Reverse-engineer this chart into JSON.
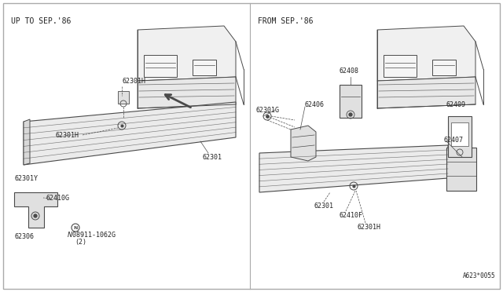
{
  "bg_color": "#ffffff",
  "line_color": "#4a4a4a",
  "text_color": "#222222",
  "border_color": "#aaaaaa",
  "left_label": "UP TO SEP.'86",
  "right_label": "FROM SEP.'86",
  "footer": "A623*0055",
  "part_fs": 6.0,
  "label_fs": 7.0
}
